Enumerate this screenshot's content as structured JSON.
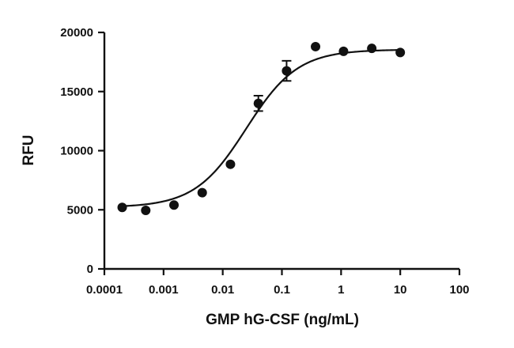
{
  "chart_data": {
    "type": "scatter",
    "title": "",
    "xlabel": "GMP hG-CSF (ng/mL)",
    "ylabel": "RFU",
    "x_scale": "log",
    "xlim": [
      0.0001,
      100
    ],
    "ylim": [
      0,
      20000
    ],
    "x_ticks": [
      0.0001,
      0.001,
      0.01,
      0.1,
      1,
      10,
      100
    ],
    "x_tick_labels": [
      "0.0001",
      "0.001",
      "0.01",
      "0.1",
      "1",
      "10",
      "100"
    ],
    "y_ticks": [
      0,
      5000,
      10000,
      15000,
      20000
    ],
    "y_tick_labels": [
      "0",
      "5000",
      "10000",
      "15000",
      "20000"
    ],
    "grid": false,
    "series": [
      {
        "points": [
          {
            "x": 0.0002,
            "y": 5200,
            "err": 0
          },
          {
            "x": 0.0005,
            "y": 4950,
            "err": 0
          },
          {
            "x": 0.0015,
            "y": 5400,
            "err": 0
          },
          {
            "x": 0.0045,
            "y": 6450,
            "err": 0
          },
          {
            "x": 0.0135,
            "y": 8850,
            "err": 0
          },
          {
            "x": 0.04,
            "y": 14000,
            "err": 650
          },
          {
            "x": 0.12,
            "y": 16750,
            "err": 850
          },
          {
            "x": 0.37,
            "y": 18800,
            "err": 0
          },
          {
            "x": 1.1,
            "y": 18400,
            "err": 0
          },
          {
            "x": 3.3,
            "y": 18650,
            "err": 0
          },
          {
            "x": 10,
            "y": 18300,
            "err": 0
          }
        ]
      }
    ],
    "fit": {
      "model": "4PL",
      "bottom": 5200,
      "top": 18550,
      "ec50": 0.025,
      "hill": 1.0,
      "x_range": [
        0.0002,
        10
      ]
    }
  }
}
